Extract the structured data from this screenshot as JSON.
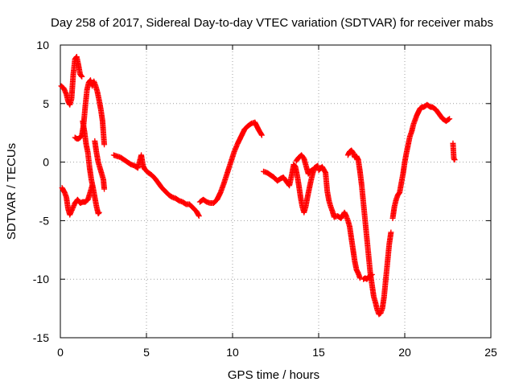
{
  "chart_data": {
    "type": "scatter",
    "title": "Day 258 of 2017, Sidereal Day-to-day VTEC variation (SDTVAR) for receiver mabs",
    "xlabel": "GPS time / hours",
    "ylabel": "SDTVAR / TECUs",
    "xlim": [
      0,
      25
    ],
    "ylim": [
      -15,
      10
    ],
    "xticks": [
      0,
      5,
      10,
      15,
      20,
      25
    ],
    "yticks": [
      -15,
      -10,
      -5,
      0,
      5,
      10
    ],
    "grid": true,
    "legend": "none",
    "marker": "+",
    "series": [
      {
        "name": "SDTVAR",
        "color": "#ff0000",
        "segments": [
          [
            [
              0.05,
              6.5
            ],
            [
              0.2,
              6.3
            ],
            [
              0.35,
              5.8
            ],
            [
              0.45,
              5.2
            ],
            [
              0.55,
              4.9
            ],
            [
              0.65,
              5.4
            ],
            [
              0.75,
              7.5
            ],
            [
              0.85,
              8.8
            ],
            [
              0.95,
              9.0
            ],
            [
              1.05,
              8.3
            ],
            [
              1.15,
              7.5
            ],
            [
              1.25,
              7.3
            ]
          ],
          [
            [
              0.1,
              -2.2
            ],
            [
              0.25,
              -2.6
            ],
            [
              0.35,
              -3.0
            ],
            [
              0.45,
              -4.0
            ],
            [
              0.55,
              -4.5
            ],
            [
              0.7,
              -4.0
            ],
            [
              0.85,
              -3.5
            ],
            [
              1.0,
              -3.2
            ],
            [
              1.15,
              -3.5
            ],
            [
              1.3,
              -3.4
            ],
            [
              1.45,
              -3.4
            ],
            [
              1.6,
              -3.2
            ],
            [
              1.75,
              -2.5
            ],
            [
              1.85,
              -2.0
            ]
          ],
          [
            [
              0.85,
              2.1
            ],
            [
              0.95,
              2.0
            ],
            [
              1.05,
              2.0
            ],
            [
              1.15,
              2.1
            ],
            [
              1.25,
              2.3
            ],
            [
              1.35,
              3.2
            ],
            [
              1.45,
              4.8
            ],
            [
              1.55,
              6.2
            ],
            [
              1.65,
              6.8
            ],
            [
              1.75,
              7.0
            ],
            [
              1.85,
              6.5
            ],
            [
              1.95,
              6.9
            ],
            [
              2.05,
              6.5
            ],
            [
              2.15,
              6.0
            ],
            [
              2.25,
              5.3
            ],
            [
              2.35,
              4.5
            ],
            [
              2.45,
              3.5
            ],
            [
              2.55,
              1.5
            ]
          ],
          [
            [
              1.3,
              3.5
            ],
            [
              1.4,
              2.6
            ],
            [
              1.5,
              1.5
            ],
            [
              1.6,
              0.8
            ],
            [
              1.7,
              -0.5
            ],
            [
              1.8,
              -1.5
            ],
            [
              1.9,
              -2.2
            ],
            [
              2.0,
              -3.0
            ],
            [
              2.1,
              -3.8
            ],
            [
              2.2,
              -4.4
            ],
            [
              2.25,
              -4.3
            ]
          ],
          [
            [
              2.0,
              1.8
            ],
            [
              2.1,
              0.8
            ],
            [
              2.2,
              0.0
            ],
            [
              2.3,
              -0.5
            ],
            [
              2.4,
              -1.0
            ],
            [
              2.5,
              -1.5
            ],
            [
              2.55,
              -2.3
            ]
          ],
          [
            [
              3.1,
              0.6
            ],
            [
              3.3,
              0.5
            ],
            [
              3.5,
              0.4
            ],
            [
              3.7,
              0.2
            ],
            [
              3.9,
              0.0
            ],
            [
              4.1,
              -0.2
            ],
            [
              4.3,
              -0.3
            ],
            [
              4.5,
              -0.5
            ],
            [
              4.7,
              0.6
            ],
            [
              4.8,
              -0.3
            ],
            [
              4.9,
              -0.6
            ],
            [
              5.1,
              -0.9
            ],
            [
              5.3,
              -1.1
            ],
            [
              5.5,
              -1.4
            ],
            [
              5.7,
              -1.8
            ],
            [
              5.9,
              -2.2
            ],
            [
              6.1,
              -2.5
            ],
            [
              6.3,
              -2.8
            ],
            [
              6.5,
              -3.0
            ],
            [
              6.7,
              -3.1
            ],
            [
              6.9,
              -3.3
            ],
            [
              7.1,
              -3.4
            ],
            [
              7.3,
              -3.6
            ],
            [
              7.5,
              -3.6
            ],
            [
              7.7,
              -3.9
            ],
            [
              7.9,
              -4.2
            ],
            [
              8.05,
              -4.6
            ]
          ],
          [
            [
              8.1,
              -3.4
            ],
            [
              8.3,
              -3.2
            ],
            [
              8.5,
              -3.4
            ],
            [
              8.7,
              -3.5
            ],
            [
              8.9,
              -3.5
            ],
            [
              9.1,
              -3.2
            ],
            [
              9.3,
              -2.6
            ],
            [
              9.5,
              -1.8
            ],
            [
              9.7,
              -0.9
            ],
            [
              9.9,
              0.0
            ],
            [
              10.1,
              0.9
            ],
            [
              10.3,
              1.6
            ],
            [
              10.5,
              2.2
            ],
            [
              10.7,
              2.8
            ],
            [
              10.9,
              3.1
            ],
            [
              11.1,
              3.3
            ],
            [
              11.3,
              3.4
            ],
            [
              11.5,
              2.8
            ],
            [
              11.7,
              2.3
            ]
          ],
          [
            [
              11.8,
              -0.8
            ],
            [
              12.0,
              -0.9
            ],
            [
              12.2,
              -1.1
            ],
            [
              12.4,
              -1.3
            ],
            [
              12.6,
              -1.6
            ],
            [
              12.8,
              -1.4
            ],
            [
              12.95,
              -1.3
            ],
            [
              13.1,
              -1.6
            ],
            [
              13.3,
              -2.0
            ],
            [
              13.45,
              -1.0
            ],
            [
              13.55,
              -0.2
            ],
            [
              13.65,
              -0.4
            ],
            [
              13.75,
              -1.1
            ],
            [
              13.85,
              -2.0
            ],
            [
              13.95,
              -3.0
            ],
            [
              14.05,
              -3.8
            ],
            [
              14.15,
              -4.3
            ],
            [
              14.25,
              -3.8
            ],
            [
              14.35,
              -3.0
            ],
            [
              14.45,
              -2.3
            ],
            [
              14.55,
              -1.6
            ],
            [
              14.65,
              -1.0
            ],
            [
              14.75,
              -0.5
            ],
            [
              14.85,
              -0.4
            ],
            [
              14.95,
              -0.3
            ]
          ],
          [
            [
              13.7,
              0.1
            ],
            [
              13.85,
              0.4
            ],
            [
              14.0,
              0.6
            ],
            [
              14.15,
              0.3
            ],
            [
              14.3,
              -0.5
            ],
            [
              14.4,
              -1.0
            ],
            [
              14.5,
              -0.8
            ],
            [
              14.7,
              -0.6
            ]
          ],
          [
            [
              15.0,
              -0.7
            ],
            [
              15.2,
              -0.4
            ],
            [
              15.4,
              -0.9
            ],
            [
              15.5,
              -2.5
            ],
            [
              15.6,
              -3.3
            ],
            [
              15.7,
              -3.8
            ],
            [
              15.8,
              -4.2
            ],
            [
              15.9,
              -4.7
            ],
            [
              16.1,
              -4.6
            ],
            [
              16.3,
              -4.8
            ],
            [
              16.5,
              -4.3
            ],
            [
              16.6,
              -4.6
            ],
            [
              16.7,
              -5.0
            ],
            [
              16.8,
              -5.5
            ],
            [
              16.9,
              -6.5
            ],
            [
              17.0,
              -7.5
            ],
            [
              17.1,
              -8.5
            ],
            [
              17.2,
              -9.2
            ],
            [
              17.3,
              -9.5
            ],
            [
              17.4,
              -9.9
            ]
          ],
          [
            [
              16.7,
              0.6
            ],
            [
              16.8,
              0.9
            ],
            [
              16.9,
              1.0
            ],
            [
              17.0,
              0.8
            ],
            [
              17.1,
              0.4
            ],
            [
              17.2,
              0.5
            ],
            [
              17.3,
              0.2
            ],
            [
              17.4,
              -0.8
            ],
            [
              17.5,
              -2.0
            ],
            [
              17.6,
              -3.5
            ],
            [
              17.7,
              -5.0
            ],
            [
              17.8,
              -6.5
            ],
            [
              17.9,
              -8.0
            ],
            [
              18.0,
              -9.5
            ],
            [
              18.1,
              -10.5
            ],
            [
              18.2,
              -11.5
            ],
            [
              18.3,
              -12.0
            ],
            [
              18.4,
              -12.6
            ],
            [
              18.5,
              -13.0
            ],
            [
              18.6,
              -12.9
            ],
            [
              18.7,
              -12.5
            ],
            [
              18.8,
              -11.5
            ],
            [
              18.9,
              -10.0
            ],
            [
              19.0,
              -8.5
            ],
            [
              19.1,
              -7.0
            ],
            [
              19.2,
              -6.0
            ]
          ],
          [
            [
              17.6,
              -10.0
            ],
            [
              17.7,
              -9.9
            ],
            [
              17.8,
              -10.0
            ],
            [
              17.9,
              -9.8
            ],
            [
              18.0,
              -9.7
            ],
            [
              18.1,
              -9.6
            ]
          ],
          [
            [
              19.3,
              -4.8
            ],
            [
              19.4,
              -3.8
            ],
            [
              19.5,
              -3.2
            ],
            [
              19.6,
              -2.8
            ],
            [
              19.7,
              -2.6
            ],
            [
              19.8,
              -1.8
            ],
            [
              19.9,
              -1.0
            ],
            [
              20.0,
              0.0
            ],
            [
              20.1,
              0.8
            ],
            [
              20.2,
              1.5
            ],
            [
              20.3,
              2.2
            ],
            [
              20.4,
              2.6
            ],
            [
              20.5,
              3.2
            ],
            [
              20.6,
              3.6
            ],
            [
              20.7,
              4.0
            ],
            [
              20.8,
              4.3
            ],
            [
              20.9,
              4.6
            ],
            [
              21.0,
              4.7
            ],
            [
              21.1,
              4.7
            ],
            [
              21.2,
              4.8
            ],
            [
              21.3,
              4.9
            ],
            [
              21.4,
              4.8
            ],
            [
              21.5,
              4.7
            ],
            [
              21.6,
              4.7
            ],
            [
              21.7,
              4.6
            ],
            [
              21.8,
              4.5
            ],
            [
              21.9,
              4.3
            ],
            [
              22.0,
              4.1
            ],
            [
              22.1,
              3.9
            ],
            [
              22.2,
              3.7
            ],
            [
              22.3,
              3.6
            ],
            [
              22.4,
              3.5
            ],
            [
              22.5,
              3.6
            ],
            [
              22.6,
              3.7
            ]
          ],
          [
            [
              22.8,
              1.6
            ],
            [
              22.85,
              0.3
            ],
            [
              22.9,
              0.2
            ]
          ]
        ]
      }
    ]
  }
}
